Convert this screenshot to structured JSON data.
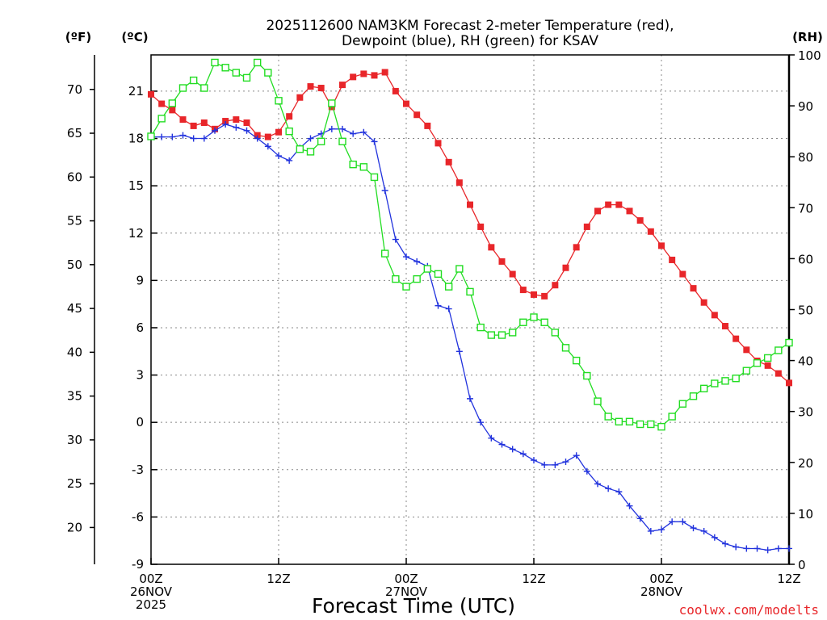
{
  "chart_data": {
    "type": "line",
    "title": [
      "2025112600 NAM3KM Forecast 2-meter Temperature (red),",
      "Dewpoint (blue), RH (green) for KSAV"
    ],
    "xlabel": "Forecast Time (UTC)",
    "credit": "coolwx.com/modelts",
    "units": {
      "fahrenheit": "(ºF)",
      "celsius": "(ºC)",
      "rh": "(RH)"
    },
    "x_range_hours": [
      0,
      60
    ],
    "x_ticks": [
      {
        "hour": 0,
        "lines": [
          "00Z",
          "26NOV",
          "2025"
        ]
      },
      {
        "hour": 12,
        "lines": [
          "12Z"
        ]
      },
      {
        "hour": 24,
        "lines": [
          "00Z",
          "27NOV"
        ]
      },
      {
        "hour": 36,
        "lines": [
          "12Z"
        ]
      },
      {
        "hour": 48,
        "lines": [
          "00Z",
          "28NOV"
        ]
      },
      {
        "hour": 60,
        "lines": [
          "12Z"
        ]
      }
    ],
    "celsius_axis": {
      "ylim": [
        -9,
        23.3
      ],
      "ticks": [
        "-9",
        "-6",
        "-3",
        "0",
        "3",
        "6",
        "9",
        "12",
        "15",
        "18",
        "21"
      ]
    },
    "fahrenheit_axis": {
      "ticks": [
        "20",
        "25",
        "30",
        "35",
        "40",
        "45",
        "50",
        "55",
        "60",
        "65",
        "70"
      ]
    },
    "rh_axis": {
      "ylim": [
        0,
        100
      ],
      "ticks": [
        "0",
        "10",
        "20",
        "30",
        "40",
        "50",
        "60",
        "70",
        "80",
        "90",
        "100"
      ]
    },
    "x": [
      0,
      1,
      2,
      3,
      4,
      5,
      6,
      7,
      8,
      9,
      10,
      11,
      12,
      13,
      14,
      15,
      16,
      17,
      18,
      19,
      20,
      21,
      22,
      23,
      24,
      25,
      26,
      27,
      28,
      29,
      30,
      31,
      32,
      33,
      34,
      35,
      36,
      37,
      38,
      39,
      40,
      41,
      42,
      43,
      44,
      45,
      46,
      47,
      48,
      49,
      50,
      51,
      52,
      53,
      54,
      55,
      56,
      57,
      58,
      59,
      60
    ],
    "series": [
      {
        "name": "Temperature",
        "units": "C",
        "color": "#e8262a",
        "marker": "filled-square",
        "values": [
          20.8,
          20.2,
          19.8,
          19.2,
          18.8,
          19.0,
          18.6,
          19.1,
          19.2,
          19.0,
          18.2,
          18.1,
          18.4,
          19.4,
          20.6,
          21.3,
          21.2,
          20.0,
          21.4,
          21.9,
          22.1,
          22.0,
          22.2,
          21.0,
          20.2,
          19.5,
          18.8,
          17.7,
          16.5,
          15.2,
          13.8,
          12.4,
          11.1,
          10.2,
          9.4,
          8.4,
          8.1,
          8.0,
          8.7,
          9.8,
          11.1,
          12.4,
          13.4,
          13.8,
          13.8,
          13.4,
          12.8,
          12.1,
          11.2,
          10.3,
          9.4,
          8.5,
          7.6,
          6.8,
          6.1,
          5.3,
          4.6,
          3.9,
          3.6,
          3.1,
          2.5
        ]
      },
      {
        "name": "Dewpoint",
        "units": "C",
        "color": "#2233dd",
        "marker": "plus",
        "values": [
          18.1,
          18.1,
          18.1,
          18.2,
          18.0,
          18.0,
          18.5,
          18.9,
          18.7,
          18.5,
          18.0,
          17.5,
          16.9,
          16.6,
          17.4,
          18.0,
          18.3,
          18.6,
          18.6,
          18.3,
          18.4,
          17.8,
          14.7,
          11.6,
          10.5,
          10.2,
          9.9,
          7.4,
          7.2,
          4.5,
          1.5,
          0.0,
          -1.0,
          -1.4,
          -1.7,
          -2.0,
          -2.4,
          -2.7,
          -2.7,
          -2.5,
          -2.1,
          -3.1,
          -3.9,
          -4.2,
          -4.4,
          -5.3,
          -6.1,
          -6.9,
          -6.8,
          -6.3,
          -6.3,
          -6.7,
          -6.9,
          -7.3,
          -7.7,
          -7.9,
          -8.0,
          -8.0,
          -8.1,
          -8.0,
          -8.0
        ]
      },
      {
        "name": "RH",
        "units": "%",
        "color": "#22dd22",
        "marker": "open-square",
        "values": [
          84.0,
          87.5,
          90.5,
          93.5,
          95.0,
          93.5,
          98.5,
          97.5,
          96.5,
          95.5,
          98.5,
          96.5,
          91.0,
          85.0,
          81.5,
          81.0,
          83.0,
          90.5,
          83.0,
          78.5,
          78.0,
          76.0,
          61.0,
          56.0,
          54.5,
          56.0,
          58.0,
          57.0,
          54.5,
          58.0,
          53.5,
          46.5,
          45.0,
          45.0,
          45.5,
          47.5,
          48.5,
          47.5,
          45.5,
          42.5,
          40.0,
          37.0,
          32.0,
          29.0,
          28.0,
          28.0,
          27.5,
          27.5,
          27.0,
          29.0,
          31.5,
          33.0,
          34.5,
          35.5,
          36.0,
          36.5,
          38.0,
          39.5,
          40.5,
          42.0,
          43.5
        ]
      }
    ]
  }
}
